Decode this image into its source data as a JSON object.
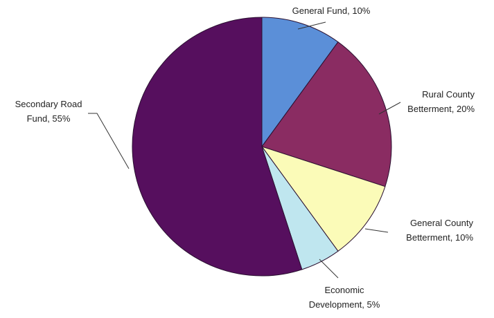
{
  "chart_data": {
    "type": "pie",
    "title": "",
    "start_angle_deg": 0,
    "direction": "clockwise",
    "slices": [
      {
        "label_lines": [
          "General Fund, 10%"
        ],
        "category": "General Fund",
        "value": 10,
        "color": "#5b8fd8"
      },
      {
        "label_lines": [
          "Rural County",
          "Betterment, 20%"
        ],
        "category": "Rural County Betterment",
        "value": 20,
        "color": "#8a2c62"
      },
      {
        "label_lines": [
          "General County",
          "Betterment, 10%"
        ],
        "category": "General County Betterment",
        "value": 10,
        "color": "#fbfbb8"
      },
      {
        "label_lines": [
          "Economic",
          "Development, 5%"
        ],
        "category": "Economic Development",
        "value": 5,
        "color": "#bfe6ef"
      },
      {
        "label_lines": [
          "Secondary Road",
          "Fund, 55%"
        ],
        "category": "Secondary Road Fund",
        "value": 55,
        "color": "#560f5e"
      }
    ],
    "edge_color": "#2a1030"
  }
}
